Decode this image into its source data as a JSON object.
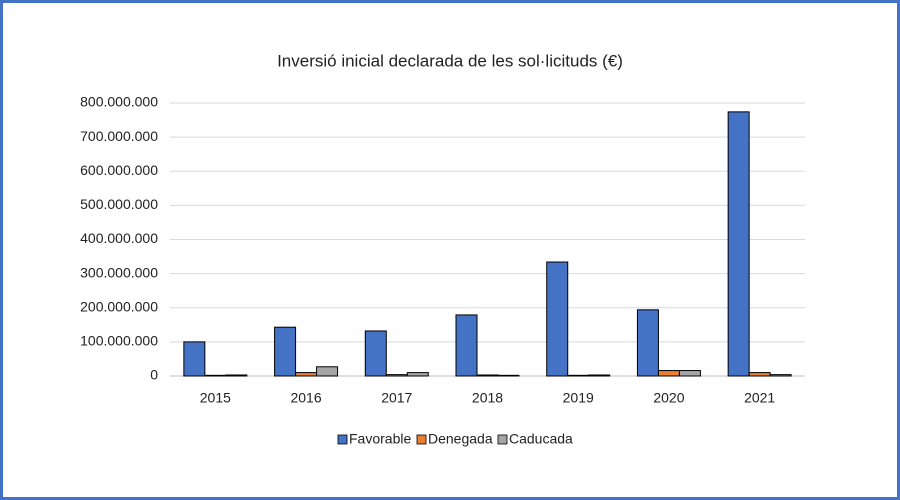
{
  "chart_data": {
    "type": "bar",
    "title": "Inversió  inicial declarada  de les sol·licituds (€)",
    "categories": [
      "2015",
      "2016",
      "2017",
      "2018",
      "2019",
      "2020",
      "2021"
    ],
    "series": [
      {
        "name": "Favorable",
        "color": "#4472c4",
        "values": [
          100000000,
          143000000,
          132000000,
          179000000,
          334000000,
          194000000,
          774000000
        ]
      },
      {
        "name": "Denegada",
        "color": "#ed7d31",
        "values": [
          2000000,
          10000000,
          4000000,
          3000000,
          2000000,
          16000000,
          10000000
        ]
      },
      {
        "name": "Caducada",
        "color": "#a5a5a5",
        "values": [
          3000000,
          27000000,
          10000000,
          2000000,
          3000000,
          16000000,
          4000000
        ]
      }
    ],
    "ylim": [
      0,
      800000000
    ],
    "yticks": [
      0,
      {
        "value": 100000000,
        "label": "100.000.000"
      },
      {
        "value": 200000000,
        "label": "200.000.000"
      },
      {
        "value": 300000000,
        "label": "300.000.000"
      },
      {
        "value": 400000000,
        "label": "400.000.000"
      },
      {
        "value": 500000000,
        "label": "500.000.000"
      },
      {
        "value": 600000000,
        "label": "600.000.000"
      },
      {
        "value": 700000000,
        "label": "700.000.000"
      },
      {
        "value": 800000000,
        "label": "800.000.000"
      }
    ],
    "grid": true,
    "legend": "bottom"
  }
}
